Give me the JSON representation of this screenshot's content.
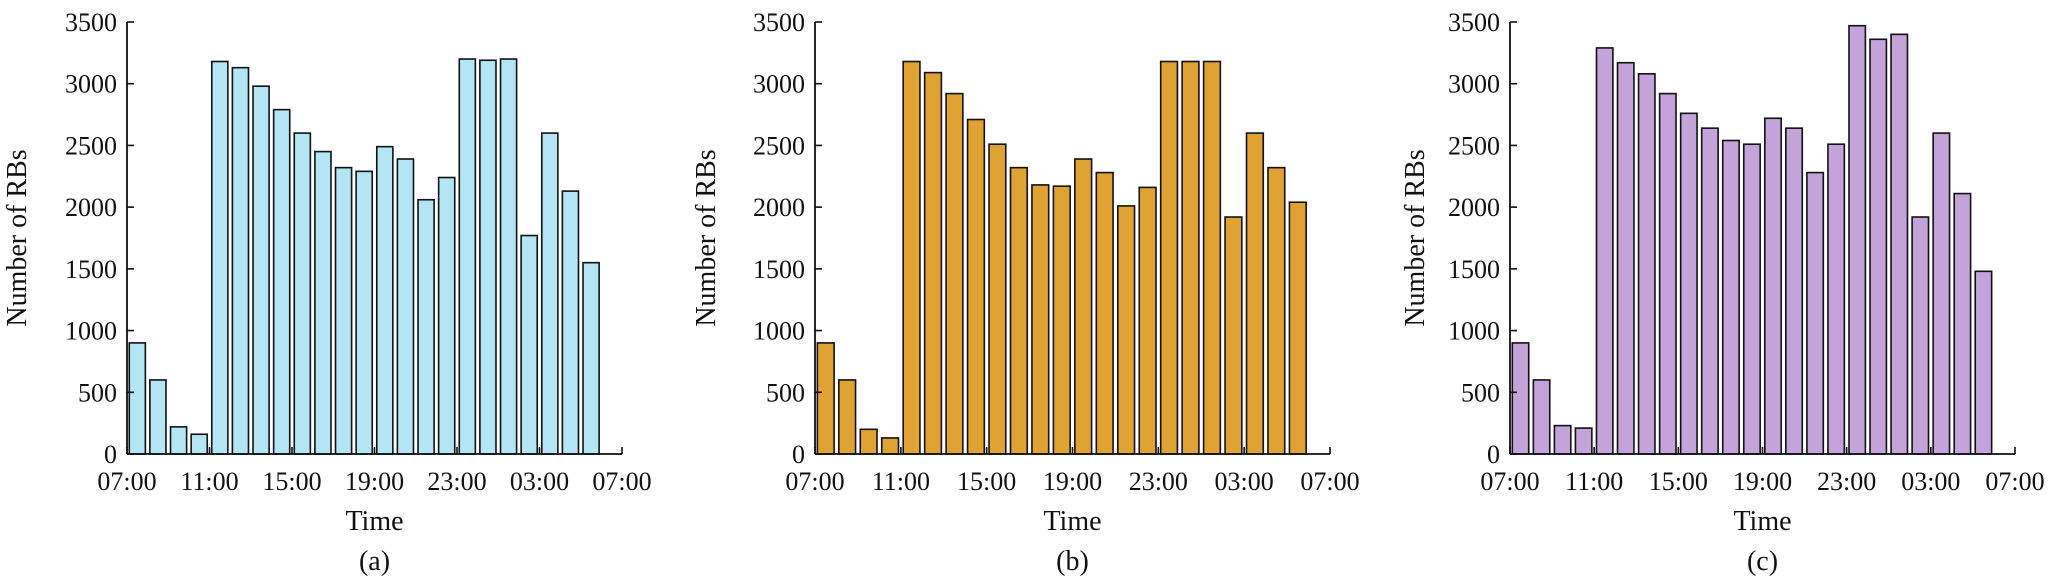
{
  "chart_data": [
    {
      "type": "bar",
      "panel_label": "(a)",
      "xlabel": "Time",
      "ylabel": "Number of RBs",
      "ylim": [
        0,
        3500
      ],
      "yticks": [
        0,
        500,
        1000,
        1500,
        2000,
        2500,
        3000,
        3500
      ],
      "xtick_labels": [
        "07:00",
        "11:00",
        "15:00",
        "19:00",
        "23:00",
        "03:00",
        "07:00"
      ],
      "categories": [
        "07:00",
        "08:00",
        "09:00",
        "10:00",
        "11:00",
        "12:00",
        "13:00",
        "14:00",
        "15:00",
        "16:00",
        "17:00",
        "18:00",
        "19:00",
        "20:00",
        "21:00",
        "22:00",
        "23:00",
        "00:00",
        "01:00",
        "02:00",
        "03:00",
        "04:00",
        "05:00",
        "06:00"
      ],
      "values": [
        900,
        600,
        220,
        160,
        3180,
        3130,
        2980,
        2790,
        2600,
        2450,
        2320,
        2290,
        2490,
        2390,
        2060,
        2240,
        3200,
        3190,
        3200,
        1770,
        2600,
        2130,
        1550,
        0
      ],
      "color": "#b3e5f5",
      "grid": false
    },
    {
      "type": "bar",
      "panel_label": "(b)",
      "xlabel": "Time",
      "ylabel": "Number of RBs",
      "ylim": [
        0,
        3500
      ],
      "yticks": [
        0,
        500,
        1000,
        1500,
        2000,
        2500,
        3000,
        3500
      ],
      "xtick_labels": [
        "07:00",
        "11:00",
        "15:00",
        "19:00",
        "23:00",
        "03:00",
        "07:00"
      ],
      "categories": [
        "07:00",
        "08:00",
        "09:00",
        "10:00",
        "11:00",
        "12:00",
        "13:00",
        "14:00",
        "15:00",
        "16:00",
        "17:00",
        "18:00",
        "19:00",
        "20:00",
        "21:00",
        "22:00",
        "23:00",
        "00:00",
        "01:00",
        "02:00",
        "03:00",
        "04:00",
        "05:00",
        "06:00"
      ],
      "values": [
        900,
        600,
        200,
        130,
        3180,
        3090,
        2920,
        2710,
        2510,
        2320,
        2180,
        2170,
        2390,
        2280,
        2010,
        2160,
        3180,
        3180,
        3180,
        1920,
        2600,
        2320,
        2040,
        0
      ],
      "color": "#e0a333",
      "grid": false
    },
    {
      "type": "bar",
      "panel_label": "(c)",
      "xlabel": "Time",
      "ylabel": "Number of RBs",
      "ylim": [
        0,
        3500
      ],
      "yticks": [
        0,
        500,
        1000,
        1500,
        2000,
        2500,
        3000,
        3500
      ],
      "xtick_labels": [
        "07:00",
        "11:00",
        "15:00",
        "19:00",
        "23:00",
        "03:00",
        "07:00"
      ],
      "categories": [
        "07:00",
        "08:00",
        "09:00",
        "10:00",
        "11:00",
        "12:00",
        "13:00",
        "14:00",
        "15:00",
        "16:00",
        "17:00",
        "18:00",
        "19:00",
        "20:00",
        "21:00",
        "22:00",
        "23:00",
        "00:00",
        "01:00",
        "02:00",
        "03:00",
        "04:00",
        "05:00",
        "06:00"
      ],
      "values": [
        900,
        600,
        230,
        210,
        3290,
        3170,
        3080,
        2920,
        2760,
        2640,
        2540,
        2510,
        2720,
        2640,
        2280,
        2510,
        3470,
        3360,
        3400,
        1920,
        2600,
        2110,
        1480,
        0
      ],
      "color": "#c3a3d9",
      "grid": false
    }
  ]
}
